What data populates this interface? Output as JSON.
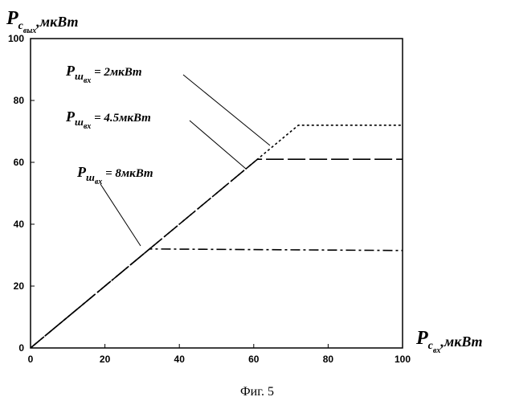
{
  "chart_data": {
    "type": "line",
    "caption": "Фиг. 5",
    "y_axis": {
      "title_main": "P",
      "title_sub": "c",
      "title_sub2": "вых",
      "title_unit": ",мкВт",
      "range": [
        0,
        100
      ],
      "ticks": [
        "0",
        "20",
        "40",
        "60",
        "80",
        "100"
      ]
    },
    "x_axis": {
      "title_main": "P",
      "title_sub": "c",
      "title_sub2": "вх",
      "title_unit": ",мкВт",
      "range": [
        0,
        100
      ],
      "ticks": [
        "0",
        "20",
        "40",
        "60",
        "80",
        "100"
      ]
    },
    "grid": false,
    "series": [
      {
        "label_main": "P",
        "label_sub": "ш",
        "label_sub2": "вх",
        "label_eq": " = 2мкВт",
        "style": "dotted",
        "x": [
          0,
          72,
          100
        ],
        "y": [
          0,
          72,
          72
        ]
      },
      {
        "label_main": "P",
        "label_sub": "ш",
        "label_sub2": "вх",
        "label_eq": " = 4.5мкВт",
        "style": "long-dash",
        "x": [
          0,
          61,
          100
        ],
        "y": [
          0,
          61,
          61
        ]
      },
      {
        "label_main": "P",
        "label_sub": "ш",
        "label_sub2": "вх",
        "label_eq": " = 8мкВт",
        "style": "dash-dot",
        "x": [
          0,
          32,
          100
        ],
        "y": [
          0,
          32,
          31.5
        ]
      }
    ],
    "colors": {
      "line": "#000000",
      "background": "#ffffff"
    }
  }
}
